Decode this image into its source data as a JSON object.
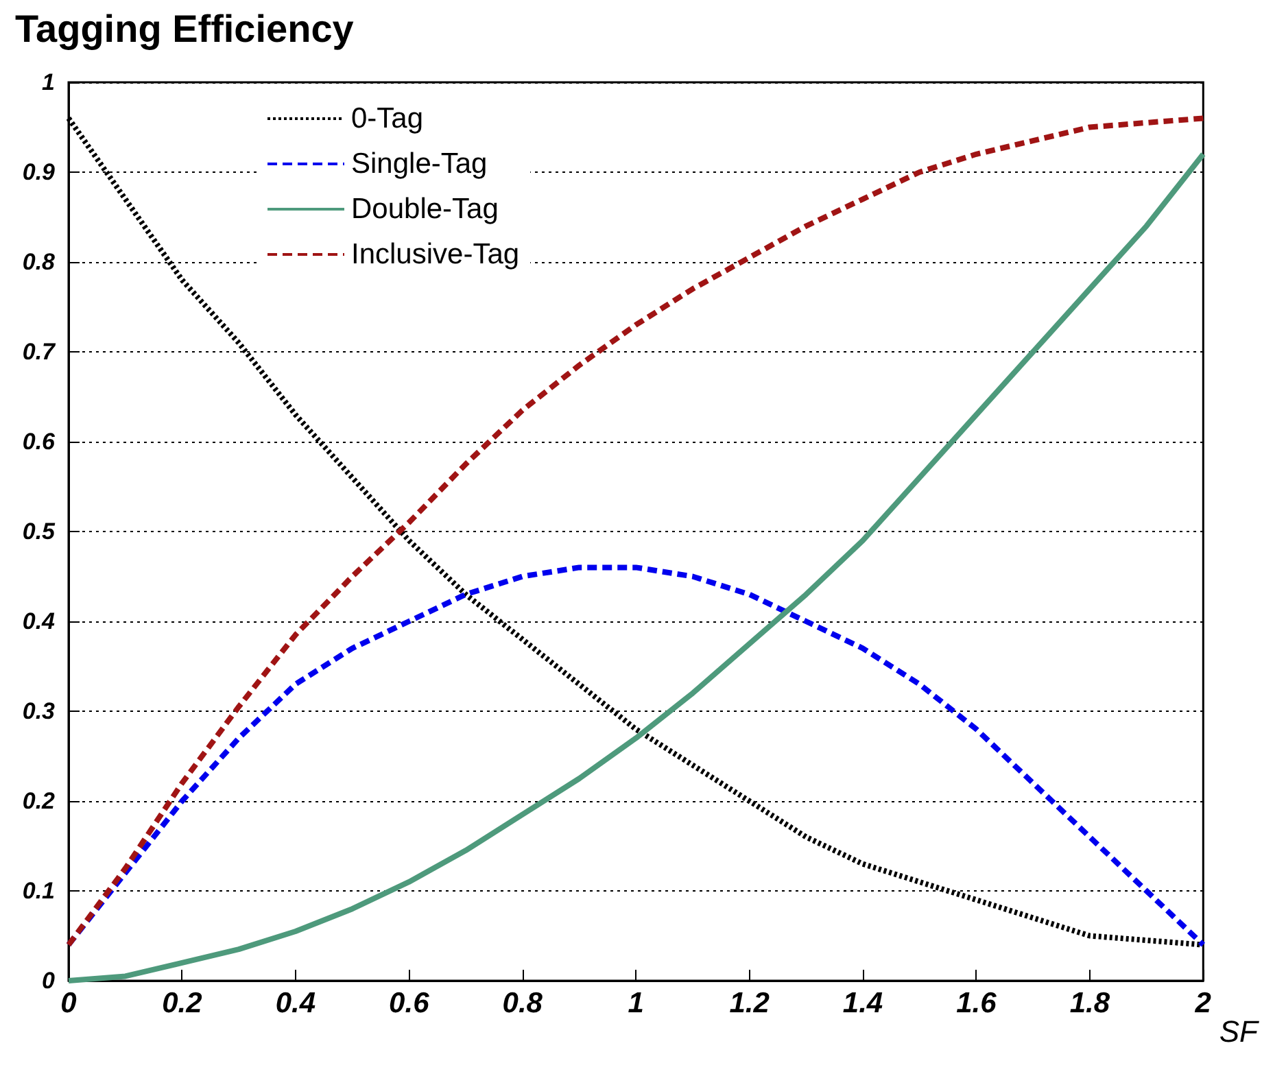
{
  "chart_data": {
    "type": "line",
    "title": "Tagging Efficiency",
    "xlabel": "SF",
    "x": [
      0,
      0.1,
      0.2,
      0.3,
      0.4,
      0.5,
      0.6,
      0.7,
      0.8,
      0.9,
      1.0,
      1.1,
      1.2,
      1.3,
      1.4,
      1.5,
      1.6,
      1.7,
      1.8,
      1.9,
      2.0
    ],
    "series": [
      {
        "name": "0-Tag",
        "color": "#000000",
        "line_style": "dotted",
        "values": [
          0.96,
          0.87,
          0.78,
          0.71,
          0.63,
          0.56,
          0.49,
          0.43,
          0.38,
          0.33,
          0.28,
          0.24,
          0.2,
          0.16,
          0.13,
          0.11,
          0.09,
          0.07,
          0.05,
          0.045,
          0.04
        ]
      },
      {
        "name": "Single-Tag",
        "color": "#0000ee",
        "line_style": "dashed",
        "values": [
          0.04,
          0.12,
          0.2,
          0.27,
          0.33,
          0.37,
          0.4,
          0.43,
          0.45,
          0.46,
          0.46,
          0.45,
          0.43,
          0.4,
          0.37,
          0.33,
          0.28,
          0.22,
          0.16,
          0.1,
          0.04
        ]
      },
      {
        "name": "Double-Tag",
        "color": "#4e9a7c",
        "line_style": "solid",
        "values": [
          0.0,
          0.005,
          0.02,
          0.035,
          0.055,
          0.08,
          0.11,
          0.145,
          0.185,
          0.225,
          0.27,
          0.32,
          0.375,
          0.43,
          0.49,
          0.56,
          0.63,
          0.7,
          0.77,
          0.84,
          0.92
        ]
      },
      {
        "name": "Inclusive-Tag",
        "color": "#a01414",
        "line_style": "dashed",
        "values": [
          0.04,
          0.125,
          0.22,
          0.305,
          0.385,
          0.45,
          0.51,
          0.575,
          0.635,
          0.685,
          0.73,
          0.77,
          0.805,
          0.84,
          0.87,
          0.9,
          0.92,
          0.935,
          0.95,
          0.955,
          0.96
        ]
      }
    ],
    "xlim": [
      0,
      2
    ],
    "xticks": [
      0,
      {
        "value": 0.2,
        "label": "0.2"
      },
      {
        "value": 0.4,
        "label": "0.4"
      },
      {
        "value": 0.6,
        "label": "0.6"
      },
      {
        "value": 0.8,
        "label": "0.8"
      },
      1,
      {
        "value": 1.2,
        "label": "1.2"
      },
      {
        "value": 1.4,
        "label": "1.4"
      },
      {
        "value": 1.6,
        "label": "1.6"
      },
      {
        "value": 1.8,
        "label": "1.8"
      },
      2
    ],
    "ylim": [
      0,
      1
    ],
    "yticks": [
      0,
      0.1,
      0.2,
      0.3,
      0.4,
      0.5,
      0.6,
      0.7,
      0.8,
      0.9,
      1
    ],
    "grid": "y",
    "legend": "top left",
    "marker": "none"
  }
}
